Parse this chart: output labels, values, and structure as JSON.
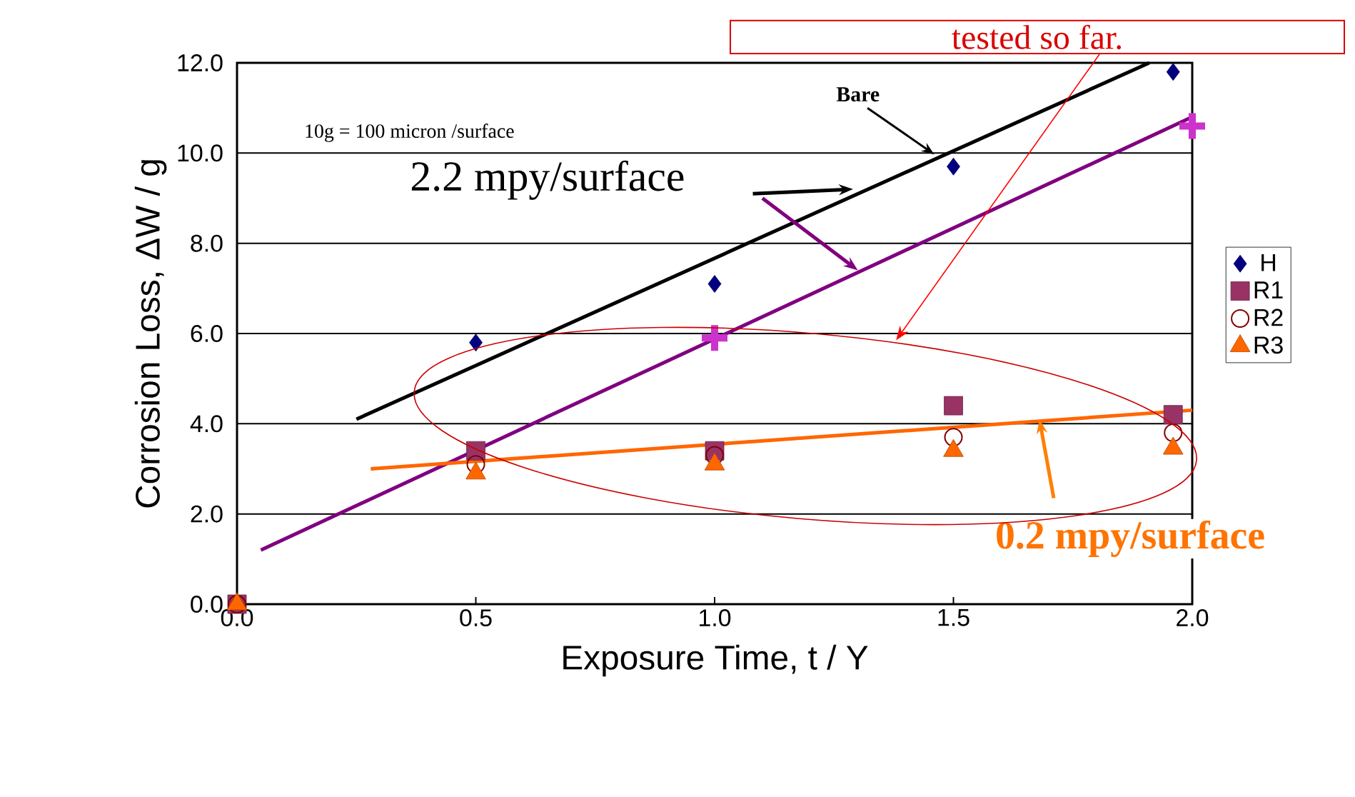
{
  "chart_data": {
    "type": "scatter",
    "xlabel": "Exposure Time, t / Y",
    "ylabel": "Corrosion Loss, ΔW / g",
    "xlim": [
      0,
      2.0
    ],
    "ylim": [
      0,
      12
    ],
    "xticks": [
      {
        "value": 0,
        "label": "0.0"
      },
      {
        "value": 0.5,
        "label": "0.5"
      },
      {
        "value": 1.0,
        "label": "1.0"
      },
      {
        "value": 1.5,
        "label": "1.5"
      },
      {
        "value": 2.0,
        "label": "2.0"
      }
    ],
    "yticks": [
      {
        "value": 0,
        "label": "0.0"
      },
      {
        "value": 2,
        "label": "2.0"
      },
      {
        "value": 4,
        "label": "4.0"
      },
      {
        "value": 6,
        "label": "6.0"
      },
      {
        "value": 8,
        "label": "8.0"
      },
      {
        "value": 10,
        "label": "10.0"
      },
      {
        "value": 12,
        "label": "12.0"
      }
    ],
    "grid": "y",
    "legend": "right",
    "series": [
      {
        "type": "line",
        "color": "#000000",
        "marker": "none",
        "x": [
          0.25,
          1.91
        ],
        "values": [
          4.1,
          12.0
        ]
      },
      {
        "type": "line",
        "color": "#800080",
        "marker": "none",
        "x": [
          0.05,
          2.0
        ],
        "values": [
          1.2,
          10.8
        ]
      },
      {
        "type": "line",
        "color": "#ff6600",
        "marker": "none",
        "x": [
          0.28,
          2.0
        ],
        "values": [
          3.0,
          4.3
        ]
      },
      {
        "color": "#cc33cc",
        "marker": "cross",
        "x": [
          1.0,
          2.0
        ],
        "values": [
          5.9,
          10.6
        ]
      },
      {
        "name": "H",
        "color": "#000080",
        "marker": "diamond",
        "x": [
          0.5,
          1.0,
          1.5,
          1.96
        ],
        "values": [
          5.8,
          7.1,
          9.7,
          11.8
        ]
      },
      {
        "name": "R1",
        "color": "#993366",
        "marker": "square",
        "x": [
          0,
          0.5,
          1.0,
          1.5,
          1.96
        ],
        "values": [
          0,
          3.4,
          3.4,
          4.4,
          4.2
        ]
      },
      {
        "name": "R2",
        "color": "#800000",
        "marker": "circle",
        "x": [
          0,
          0.5,
          1.0,
          1.5,
          1.96
        ],
        "values": [
          0,
          3.1,
          3.3,
          3.7,
          3.8
        ]
      },
      {
        "name": "R3",
        "color": "#ff6600",
        "marker": "triangle",
        "x": [
          0,
          0.5,
          1.0,
          1.5,
          1.96
        ],
        "values": [
          0,
          2.9,
          3.1,
          3.4,
          3.45
        ]
      }
    ],
    "annotations": [
      "10g = 100 micron /surface",
      {
        "text": "Bare",
        "x": 1.46,
        "y": 9.97
      },
      "2.2 mpy/surface",
      {
        "text": "0.2 mpy/surface",
        "x": 1.68,
        "y": 4.1
      },
      "tested so far."
    ]
  }
}
